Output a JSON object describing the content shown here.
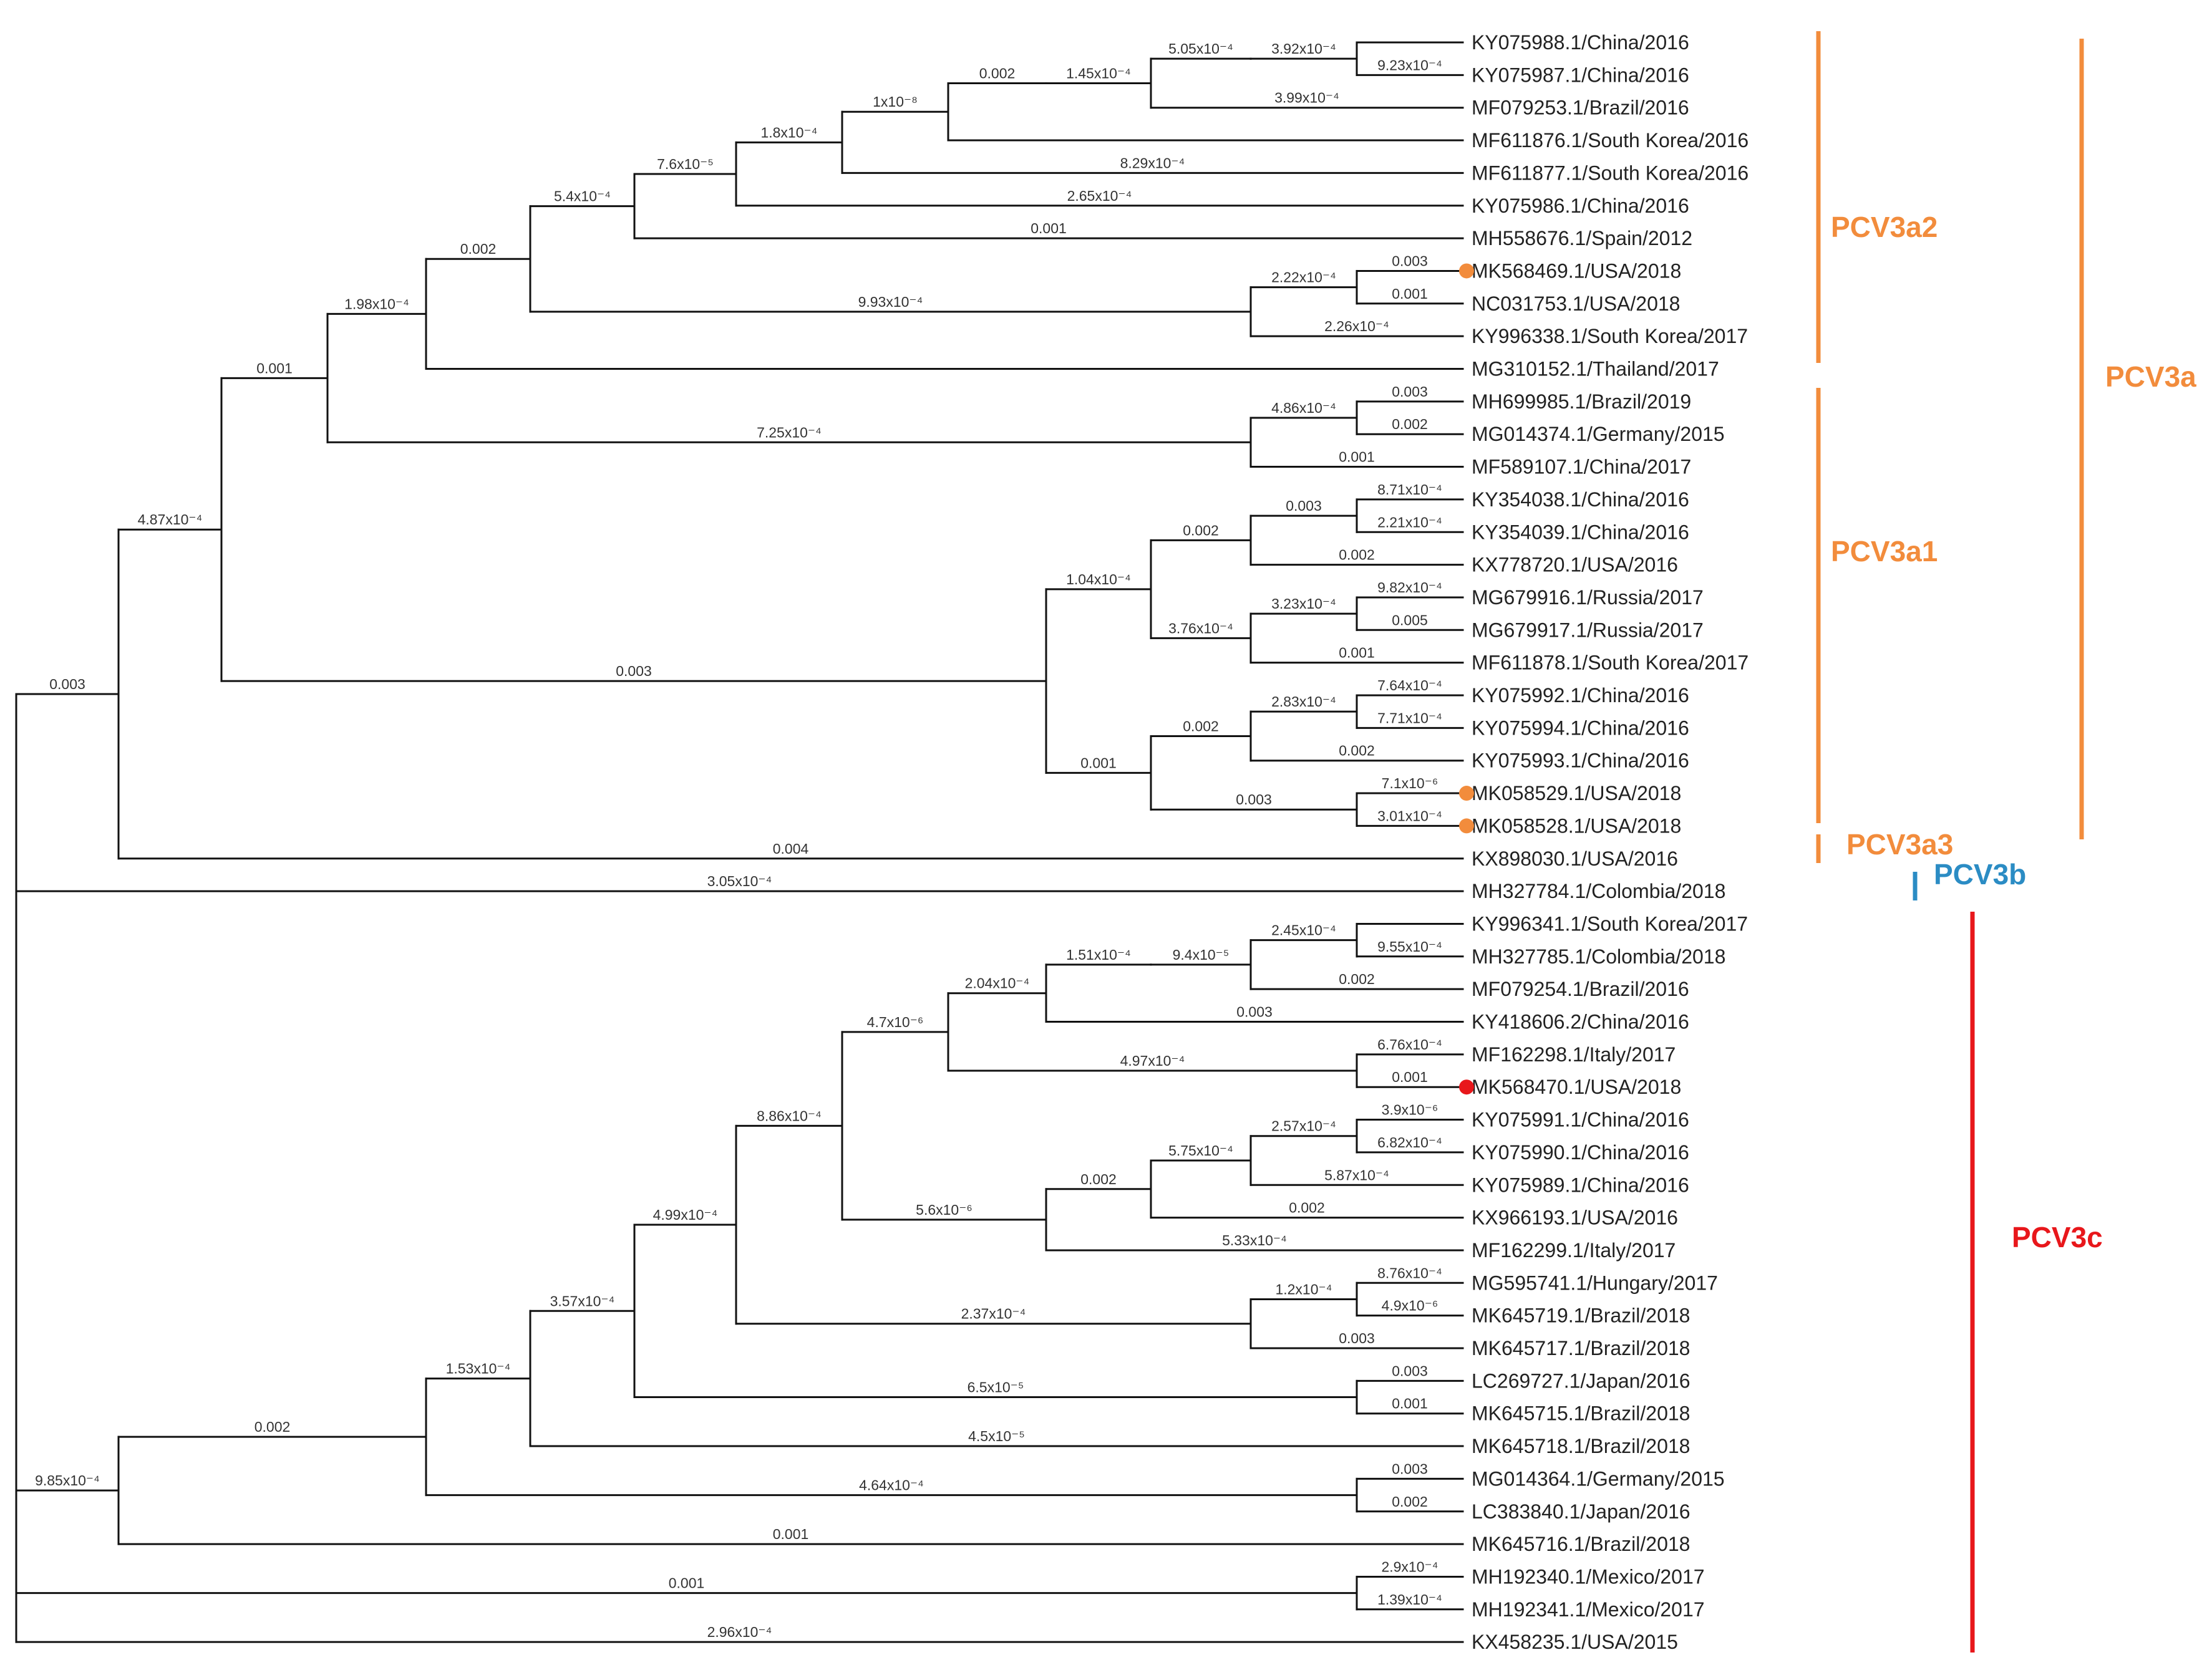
{
  "figure": {
    "kind": "phylogenetic-tree",
    "colors": {
      "line": "#111111",
      "pcv3a": "#F28C3C",
      "pcv3b": "#2B8CC4",
      "pcv3c": "#E8171B"
    }
  },
  "leaves": [
    "KY075988.1/China/2016",
    "KY075987.1/China/2016",
    "MF079253.1/Brazil/2016",
    "MF611876.1/South Korea/2016",
    "MF611877.1/South Korea/2016",
    "KY075986.1/China/2016",
    "MH558676.1/Spain/2012",
    "MK568469.1/USA/2018",
    "NC031753.1/USA/2018",
    "KY996338.1/South Korea/2017",
    "MG310152.1/Thailand/2017",
    "MH699985.1/Brazil/2019",
    "MG014374.1/Germany/2015",
    "MF589107.1/China/2017",
    "KY354038.1/China/2016",
    "KY354039.1/China/2016",
    "KX778720.1/USA/2016",
    "MG679916.1/Russia/2017",
    "MG679917.1/Russia/2017",
    "MF611878.1/South Korea/2017",
    "KY075992.1/China/2016",
    "KY075994.1/China/2016",
    "KY075993.1/China/2016",
    "MK058529.1/USA/2018",
    "MK058528.1/USA/2018",
    "KX898030.1/USA/2016",
    "MH327784.1/Colombia/2018",
    "KY996341.1/South Korea/2017",
    "MH327785.1/Colombia/2018",
    "MF079254.1/Brazil/2016",
    "KY418606.2/China/2016",
    "MF162298.1/Italy/2017",
    "MK568470.1/USA/2018",
    "KY075991.1/China/2016",
    "KY075990.1/China/2016",
    "KY075989.1/China/2016",
    "KX966193.1/USA/2016",
    "MF162299.1/Italy/2017",
    "MG595741.1/Hungary/2017",
    "MK645719.1/Brazil/2018",
    "MK645717.1/Brazil/2018",
    "LC269727.1/Japan/2016",
    "MK645715.1/Brazil/2018",
    "MK645718.1/Brazil/2018",
    "MG014364.1/Germany/2015",
    "LC383840.1/Japan/2016",
    "MK645716.1/Brazil/2018",
    "MH192340.1/Mexico/2017",
    "MH192341.1/Mexico/2017",
    "KX458235.1/USA/2015"
  ],
  "highlighted": [
    {
      "leaf": 7,
      "color": "#F28C3C"
    },
    {
      "leaf": 23,
      "color": "#F28C3C"
    },
    {
      "leaf": 24,
      "color": "#F28C3C"
    },
    {
      "leaf": 32,
      "color": "#E8171B"
    }
  ],
  "branch_labels": [
    "0.003",
    "4.87x10⁻⁴",
    "9.85x10⁻⁴",
    "0.001",
    "2.96x10⁻⁴",
    "0.001",
    "3.05x10⁻⁴",
    "0.004",
    "1.98x10⁻⁴",
    "0.003",
    "0.002",
    "7.25x10⁻⁴",
    "0.001",
    "5.4x10⁻⁴",
    "9.93x10⁻⁴",
    "7.6x10⁻⁵",
    "0.001",
    "1.8x10⁻⁴",
    "8.29x10⁻⁴",
    "1x10⁻⁸",
    "0.002",
    "1.45x10⁻⁴",
    "5.05x10⁻⁴",
    "3.99x10⁻⁴",
    "3.92x10⁻⁴",
    "9.23x10⁻⁴",
    "2.65x10⁻⁴",
    "2.22x10⁻⁴",
    "2.26x10⁻⁴",
    "0.003",
    "0.001",
    "0.002",
    "4.86x10⁻⁴",
    "0.001",
    "0.003",
    "0.002",
    "1.04x10⁻⁴",
    "0.001",
    "3.76x10⁻⁴",
    "0.002",
    "0.003",
    "0.002",
    "8.71x10⁻⁴",
    "2.21x10⁻⁴",
    "3.23x10⁻⁴",
    "0.001",
    "9.82x10⁻⁴",
    "0.005",
    "0.002",
    "0.003",
    "2.83x10⁻⁴",
    "0.002",
    "7.64x10⁻⁴",
    "7.71x10⁻⁴",
    "7.1x10⁻⁶",
    "3.01x10⁻⁴",
    "0.001",
    "0.002",
    "1.53x10⁻⁴",
    "4.64x10⁻⁴",
    "3.57x10⁻⁴",
    "4.5x10⁻⁵",
    "4.99x10⁻⁴",
    "6.5x10⁻⁵",
    "8.86x10⁻⁴",
    "2.37x10⁻⁴",
    "4.7x10⁻⁶",
    "5.6x10⁻⁶",
    "2.04x10⁻⁴",
    "4.97x10⁻⁴",
    "1.51x10⁻⁴",
    "0.003",
    "9.4x10⁻⁵",
    "0.002",
    "2.45x10⁻⁴",
    "9.55x10⁻⁴",
    "6.76x10⁻⁴",
    "0.001",
    "0.002",
    "5.33x10⁻⁴",
    "5.75x10⁻⁴",
    "0.002",
    "2.57x10⁻⁴",
    "5.87x10⁻⁴",
    "3.9x10⁻⁶",
    "6.82x10⁻⁴",
    "1.2x10⁻⁴",
    "0.003",
    "8.76x10⁻⁴",
    "4.9x10⁻⁶",
    "0.003",
    "0.001",
    "0.003",
    "0.002",
    "2.9x10⁻⁴",
    "1.39x10⁻⁴"
  ],
  "clades": [
    {
      "label": "PCV3a2",
      "color": "#F28C3C"
    },
    {
      "label": "PCV3a1",
      "color": "#F28C3C"
    },
    {
      "label": "PCV3a3",
      "color": "#F28C3C"
    },
    {
      "label": "PCV3a",
      "color": "#F28C3C"
    },
    {
      "label": "PCV3b",
      "color": "#2B8CC4"
    },
    {
      "label": "PCV3c",
      "color": "#E8171B"
    }
  ]
}
